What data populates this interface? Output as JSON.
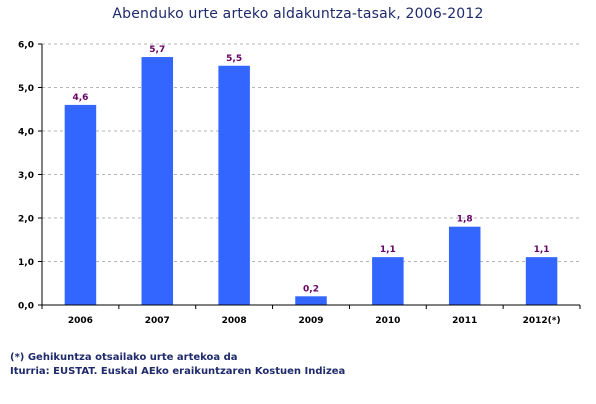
{
  "chart_data": {
    "type": "bar",
    "title": "Abenduko urte arteko aldakuntza-tasak, 2006-2012",
    "categories": [
      "2006",
      "2007",
      "2008",
      "2009",
      "2010",
      "2011",
      "2012(*)"
    ],
    "values": [
      4.6,
      5.7,
      5.5,
      0.2,
      1.1,
      1.8,
      1.1
    ],
    "value_labels": [
      "4,6",
      "5,7",
      "5,5",
      "0,2",
      "1,1",
      "1,8",
      "1,1"
    ],
    "y_ticks": [
      {
        "value": 0,
        "label": "0,0"
      },
      {
        "value": 1,
        "label": "1,0"
      },
      {
        "value": 2,
        "label": "2,0"
      },
      {
        "value": 3,
        "label": "3,0"
      },
      {
        "value": 4,
        "label": "4,0"
      },
      {
        "value": 5,
        "label": "5,0"
      },
      {
        "value": 6,
        "label": "6,0"
      }
    ],
    "ylim": [
      0,
      6
    ],
    "xlabel": "",
    "ylabel": "",
    "grid": true,
    "bar_color": "#3366ff",
    "value_label_color": "#660066"
  },
  "notes": {
    "footnote": "(*) Gehikuntza otsailako urte artekoa da",
    "source": "Iturria: EUSTAT. Euskal AEko eraikuntzaren Kostuen Indizea"
  }
}
